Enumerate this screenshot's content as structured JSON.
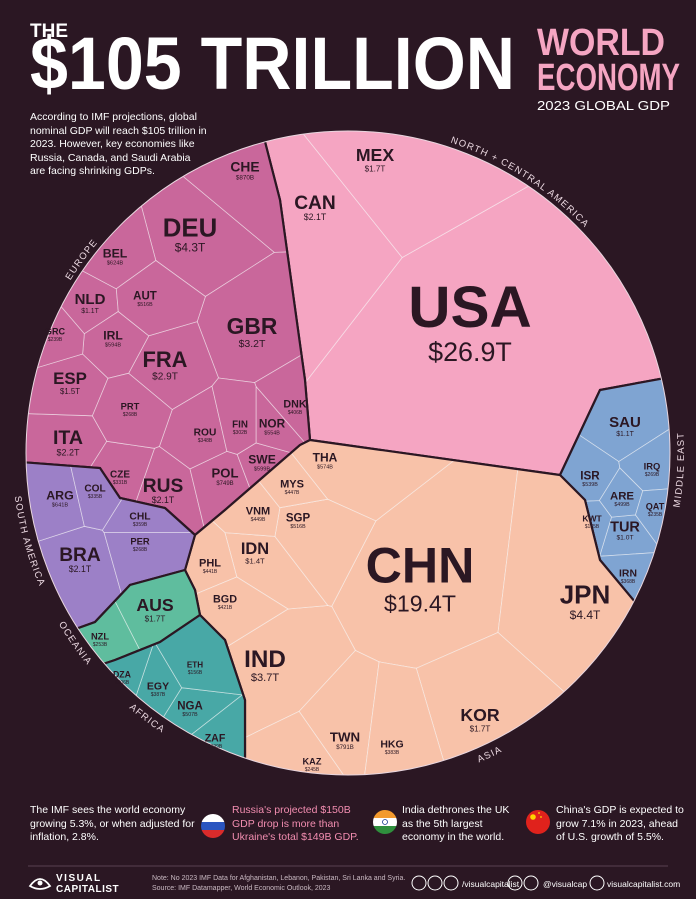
{
  "header": {
    "prefix": "THE",
    "title": "$105 TRILLION",
    "side_title_1": "WORLD",
    "side_title_2": "ECONOMY",
    "subtitle": "2023 GLOBAL GDP",
    "intro": "According to IMF projections, global nominal GDP will reach $105 trillion in 2023. However, key economies like Russia, Canada, and Saudi Arabia are facing shrinking GDPs."
  },
  "chart_data": {
    "type": "voronoi-treemap",
    "series": [
      {
        "name": "NORTH + CENTRAL AMERICA",
        "color": "#f5a5c2",
        "categories": [
          "USA",
          "CAN",
          "MEX"
        ],
        "values": [
          26900,
          2100,
          1700
        ],
        "value_labels": [
          "$26.9T",
          "$2.1T",
          "$1.7T"
        ]
      },
      {
        "name": "EUROPE",
        "color": "#c9679b",
        "categories": [
          "DEU",
          "GBR",
          "FRA",
          "ITA",
          "RUS",
          "ESP",
          "NLD",
          "CHE",
          "POL",
          "BEL",
          "SWE",
          "IRL",
          "NOR",
          "AUT",
          "DNK",
          "ROU",
          "CZE",
          "FIN",
          "PRT",
          "GRC"
        ],
        "values": [
          4300,
          3200,
          2900,
          2200,
          2100,
          1500,
          1100,
          870,
          749,
          624,
          599,
          594,
          554,
          516,
          406,
          348,
          331,
          302,
          268,
          239
        ],
        "value_labels": [
          "$4.3T",
          "$3.2T",
          "$2.9T",
          "$2.2T",
          "$2.1T",
          "$1.5T",
          "$1.1T",
          "$870B",
          "$749B",
          "$624B",
          "$599B",
          "$594B",
          "$554B",
          "$516B",
          "$406B",
          "$348B",
          "$331B",
          "$302B",
          "$268B",
          "$239B"
        ]
      },
      {
        "name": "MIDDLE EAST",
        "color": "#7fa4d2",
        "categories": [
          "SAU",
          "TUR",
          "ISR",
          "ARE",
          "IRN",
          "IRQ",
          "QAT",
          "KWT"
        ],
        "values": [
          1100,
          1000,
          539,
          499,
          368,
          269,
          235,
          185
        ],
        "value_labels": [
          "$1.1T",
          "$1.0T",
          "$539B",
          "$499B",
          "$368B",
          "$269B",
          "$235B",
          "$185B"
        ]
      },
      {
        "name": "ASIA",
        "color": "#f8c2a9",
        "categories": [
          "CHN",
          "JPN",
          "IND",
          "KOR",
          "IDN",
          "TWN",
          "THA",
          "SGP",
          "VNM",
          "MYS",
          "PHL",
          "BGD",
          "HKG",
          "KAZ"
        ],
        "values": [
          19400,
          4400,
          3700,
          1700,
          1400,
          791,
          574,
          516,
          449,
          447,
          441,
          421,
          383,
          245
        ],
        "value_labels": [
          "$19.4T",
          "$4.4T",
          "$3.7T",
          "$1.7T",
          "$1.4T",
          "$791B",
          "$574B",
          "$516B",
          "$449B",
          "$447B",
          "$441B",
          "$421B",
          "$383B",
          "$245B"
        ]
      },
      {
        "name": "SOUTH AMERICA",
        "color": "#9c80c7",
        "categories": [
          "BRA",
          "ARG",
          "CHL",
          "COL",
          "PER"
        ],
        "values": [
          2100,
          641,
          359,
          335,
          268
        ],
        "value_labels": [
          "$2.1T",
          "$641B",
          "$359B",
          "$335B",
          "$268B"
        ]
      },
      {
        "name": "OCEANIA",
        "color": "#5fbd9e",
        "categories": [
          "AUS",
          "NZL"
        ],
        "values": [
          1700,
          253
        ],
        "value_labels": [
          "$1.7T",
          "$253B"
        ]
      },
      {
        "name": "AFRICA",
        "color": "#48a8a6",
        "categories": [
          "NGA",
          "ZAF",
          "EGY",
          "DZA",
          "ETH"
        ],
        "values": [
          507,
          399,
          387,
          206,
          156
        ],
        "value_labels": [
          "$507B",
          "$399B",
          "$387B",
          "$206B",
          "$156B"
        ]
      }
    ]
  },
  "footer": {
    "facts": [
      "The IMF sees the world economy growing 5.3%, or when adjusted for inflation, 2.8%.",
      "Russia's projected $150B GDP drop is more than Ukraine's total $149B GDP.",
      "India dethrones the UK as the 5th largest economy in the world.",
      "China's GDP is expected to grow 7.1% in 2023, ahead of U.S. growth of 5.5%."
    ],
    "logo": [
      "VISUAL",
      "CAPITALIST"
    ],
    "note": "Note: No 2023 IMF Data for Afghanistan, Lebanon, Pakistan, Sri Lanka and Syria.",
    "source": "Source: IMF Datamapper, World Economic Outlook, 2023",
    "social": [
      "/visualcapitalist",
      "@visualcap",
      "visualcapitalist.com"
    ]
  }
}
